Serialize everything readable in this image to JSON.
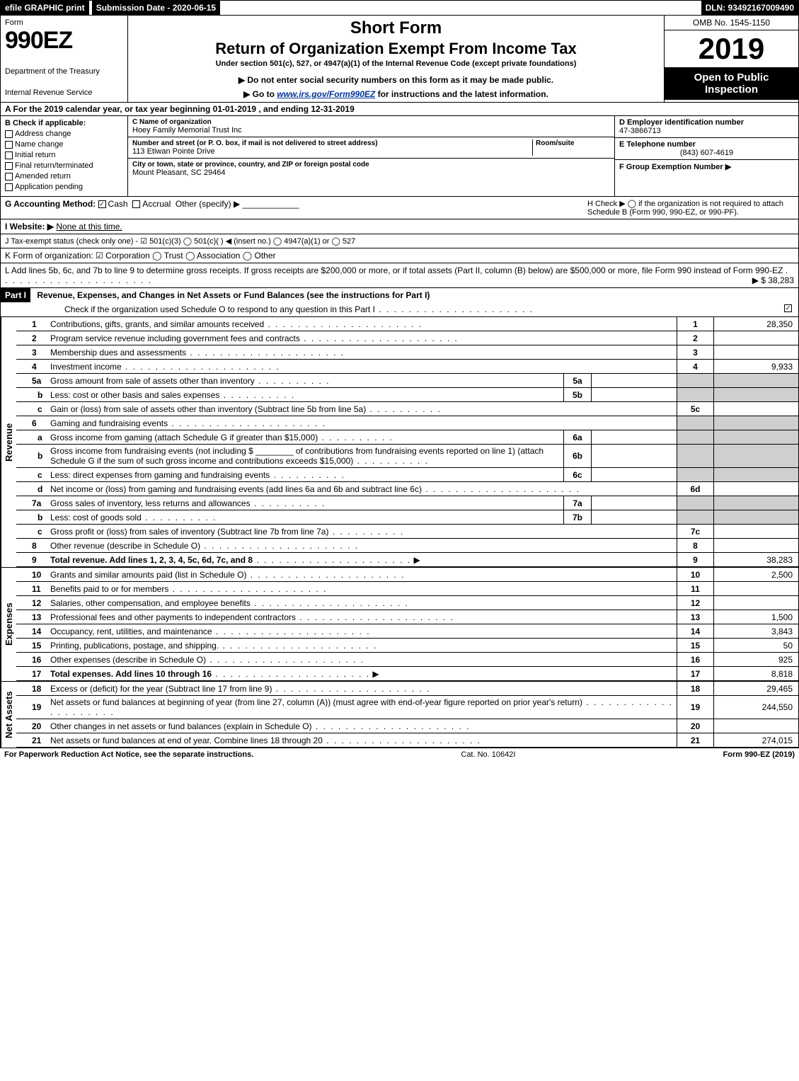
{
  "topbar": {
    "efile": "efile GRAPHIC print",
    "submission": "Submission Date - 2020-06-15",
    "dln": "DLN: 93492167009490"
  },
  "header": {
    "form_word": "Form",
    "form_num": "990EZ",
    "dept1": "Department of the Treasury",
    "dept2": "Internal Revenue Service",
    "short": "Short Form",
    "title": "Return of Organization Exempt From Income Tax",
    "sub": "Under section 501(c), 527, or 4947(a)(1) of the Internal Revenue Code (except private foundations)",
    "note1": "▶ Do not enter social security numbers on this form as it may be made public.",
    "note2_pre": "▶ Go to ",
    "note2_link": "www.irs.gov/Form990EZ",
    "note2_post": " for instructions and the latest information.",
    "omb": "OMB No. 1545-1150",
    "year": "2019",
    "open": "Open to Public Inspection"
  },
  "rowA": "A  For the 2019 calendar year, or tax year beginning 01-01-2019 , and ending 12-31-2019",
  "B": {
    "hdr": "B  Check if applicable:",
    "opts": [
      "Address change",
      "Name change",
      "Initial return",
      "Final return/terminated",
      "Amended return",
      "Application pending"
    ]
  },
  "C": {
    "name_lbl": "C Name of organization",
    "name": "Hoey Family Memorial Trust Inc",
    "addr_lbl": "Number and street (or P. O. box, if mail is not delivered to street address)",
    "addr": "113 Etiwan Pointe Drive",
    "room_lbl": "Room/suite",
    "city_lbl": "City or town, state or province, country, and ZIP or foreign postal code",
    "city": "Mount Pleasant, SC  29464"
  },
  "D": {
    "lbl": "D Employer identification number",
    "val": "47-3866713"
  },
  "E": {
    "lbl": "E Telephone number",
    "val": "(843) 607-4619"
  },
  "F": {
    "lbl": "F Group Exemption Number  ▶",
    "val": ""
  },
  "G": {
    "lbl": "G Accounting Method:",
    "cash": "Cash",
    "accrual": "Accrual",
    "other": "Other (specify) ▶"
  },
  "H": "H  Check ▶  ◯  if the organization is not required to attach Schedule B (Form 990, 990-EZ, or 990-PF).",
  "I": {
    "lbl": "I Website: ▶",
    "val": "None at this time."
  },
  "J": "J Tax-exempt status (check only one) - ☑ 501(c)(3)  ◯ 501(c)(  ) ◀ (insert no.)  ◯ 4947(a)(1) or  ◯ 527",
  "K": "K Form of organization:   ☑ Corporation   ◯ Trust   ◯ Association   ◯ Other",
  "L": {
    "text": "L Add lines 5b, 6c, and 7b to line 9 to determine gross receipts. If gross receipts are $200,000 or more, or if total assets (Part II, column (B) below) are $500,000 or more, file Form 990 instead of Form 990-EZ",
    "amt": "▶ $ 38,283"
  },
  "partI": {
    "hdr": "Part I",
    "title": "Revenue, Expenses, and Changes in Net Assets or Fund Balances (see the instructions for Part I)",
    "check": "Check if the organization used Schedule O to respond to any question in this Part I",
    "sections": {
      "revenue": "Revenue",
      "expenses": "Expenses",
      "net": "Net Assets"
    }
  },
  "lines": {
    "1": {
      "n": "1",
      "d": "Contributions, gifts, grants, and similar amounts received",
      "box": "1",
      "v": "28,350"
    },
    "2": {
      "n": "2",
      "d": "Program service revenue including government fees and contracts",
      "box": "2",
      "v": ""
    },
    "3": {
      "n": "3",
      "d": "Membership dues and assessments",
      "box": "3",
      "v": ""
    },
    "4": {
      "n": "4",
      "d": "Investment income",
      "box": "4",
      "v": "9,933"
    },
    "5a": {
      "n": "5a",
      "d": "Gross amount from sale of assets other than inventory",
      "mid": "5a"
    },
    "5b": {
      "n": "b",
      "d": "Less: cost or other basis and sales expenses",
      "mid": "5b"
    },
    "5c": {
      "n": "c",
      "d": "Gain or (loss) from sale of assets other than inventory (Subtract line 5b from line 5a)",
      "box": "5c",
      "v": ""
    },
    "6": {
      "n": "6",
      "d": "Gaming and fundraising events"
    },
    "6a": {
      "n": "a",
      "d": "Gross income from gaming (attach Schedule G if greater than $15,000)",
      "mid": "6a"
    },
    "6b": {
      "n": "b",
      "d": "Gross income from fundraising events (not including $ ________ of contributions from fundraising events reported on line 1) (attach Schedule G if the sum of such gross income and contributions exceeds $15,000)",
      "mid": "6b"
    },
    "6c": {
      "n": "c",
      "d": "Less: direct expenses from gaming and fundraising events",
      "mid": "6c"
    },
    "6d": {
      "n": "d",
      "d": "Net income or (loss) from gaming and fundraising events (add lines 6a and 6b and subtract line 6c)",
      "box": "6d",
      "v": ""
    },
    "7a": {
      "n": "7a",
      "d": "Gross sales of inventory, less returns and allowances",
      "mid": "7a"
    },
    "7b": {
      "n": "b",
      "d": "Less: cost of goods sold",
      "mid": "7b"
    },
    "7c": {
      "n": "c",
      "d": "Gross profit or (loss) from sales of inventory (Subtract line 7b from line 7a)",
      "box": "7c",
      "v": ""
    },
    "8": {
      "n": "8",
      "d": "Other revenue (describe in Schedule O)",
      "box": "8",
      "v": ""
    },
    "9": {
      "n": "9",
      "d": "Total revenue. Add lines 1, 2, 3, 4, 5c, 6d, 7c, and 8",
      "box": "9",
      "v": "38,283",
      "bold": true,
      "arrow": true
    },
    "10": {
      "n": "10",
      "d": "Grants and similar amounts paid (list in Schedule O)",
      "box": "10",
      "v": "2,500"
    },
    "11": {
      "n": "11",
      "d": "Benefits paid to or for members",
      "box": "11",
      "v": ""
    },
    "12": {
      "n": "12",
      "d": "Salaries, other compensation, and employee benefits",
      "box": "12",
      "v": ""
    },
    "13": {
      "n": "13",
      "d": "Professional fees and other payments to independent contractors",
      "box": "13",
      "v": "1,500"
    },
    "14": {
      "n": "14",
      "d": "Occupancy, rent, utilities, and maintenance",
      "box": "14",
      "v": "3,843"
    },
    "15": {
      "n": "15",
      "d": "Printing, publications, postage, and shipping.",
      "box": "15",
      "v": "50"
    },
    "16": {
      "n": "16",
      "d": "Other expenses (describe in Schedule O)",
      "box": "16",
      "v": "925"
    },
    "17": {
      "n": "17",
      "d": "Total expenses. Add lines 10 through 16",
      "box": "17",
      "v": "8,818",
      "bold": true,
      "arrow": true
    },
    "18": {
      "n": "18",
      "d": "Excess or (deficit) for the year (Subtract line 17 from line 9)",
      "box": "18",
      "v": "29,465"
    },
    "19": {
      "n": "19",
      "d": "Net assets or fund balances at beginning of year (from line 27, column (A)) (must agree with end-of-year figure reported on prior year's return)",
      "box": "19",
      "v": "244,550"
    },
    "20": {
      "n": "20",
      "d": "Other changes in net assets or fund balances (explain in Schedule O)",
      "box": "20",
      "v": ""
    },
    "21": {
      "n": "21",
      "d": "Net assets or fund balances at end of year. Combine lines 18 through 20",
      "box": "21",
      "v": "274,015"
    }
  },
  "footer": {
    "l": "For Paperwork Reduction Act Notice, see the separate instructions.",
    "c": "Cat. No. 10642I",
    "r": "Form 990-EZ (2019)"
  }
}
